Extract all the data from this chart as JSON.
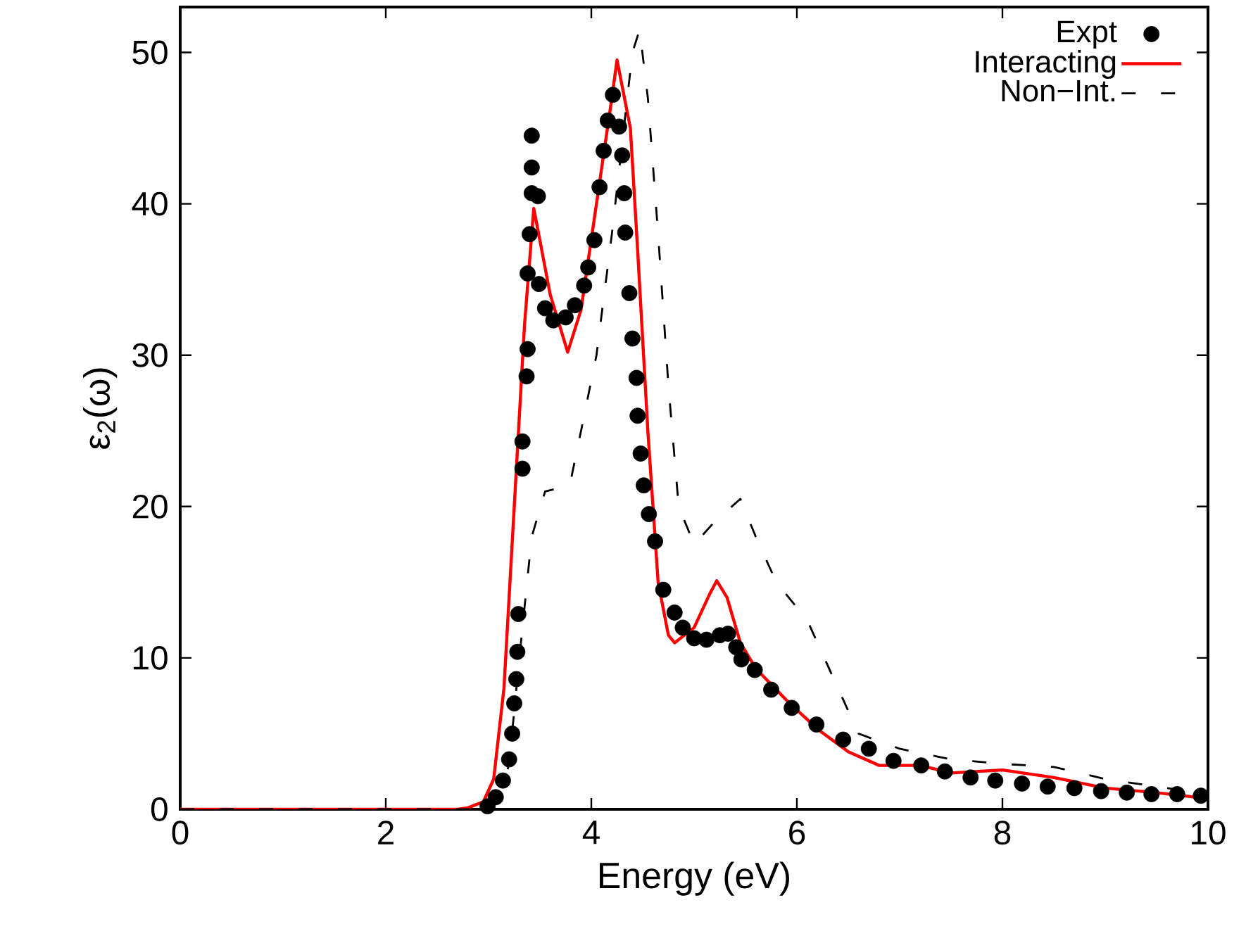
{
  "chart_data": {
    "type": "line",
    "xlabel": "Energy (eV)",
    "ylabel": "ε$_{2}$(ω)",
    "xlim": [
      0,
      10
    ],
    "ylim": [
      0,
      53
    ],
    "xticks": [
      0,
      2,
      4,
      6,
      8,
      10
    ],
    "yticks": [
      0,
      10,
      20,
      30,
      40,
      50
    ],
    "grid": false,
    "legend": "top right",
    "series": [
      {
        "name": "Expt",
        "type": "scatter",
        "marker": "circle",
        "color": "#000000",
        "x": [
          2.99,
          3.07,
          3.14,
          3.2,
          3.23,
          3.25,
          3.27,
          3.28,
          3.29,
          3.33,
          3.33,
          3.37,
          3.38,
          3.38,
          3.4,
          3.42,
          3.42,
          3.42,
          3.48,
          3.49,
          3.55,
          3.63,
          3.75,
          3.84,
          3.93,
          3.97,
          4.03,
          4.08,
          4.12,
          4.16,
          4.21,
          4.27,
          4.3,
          4.32,
          4.33,
          4.37,
          4.4,
          4.44,
          4.45,
          4.48,
          4.51,
          4.56,
          4.62,
          4.7,
          4.81,
          4.89,
          5.0,
          5.12,
          5.25,
          5.33,
          5.41,
          5.46,
          5.59,
          5.75,
          5.95,
          6.19,
          6.45,
          6.7,
          6.94,
          7.21,
          7.44,
          7.69,
          7.93,
          8.19,
          8.44,
          8.7,
          8.96,
          9.21,
          9.45,
          9.7,
          9.93
        ],
        "values": [
          0.2,
          0.8,
          1.9,
          3.3,
          5.0,
          7.0,
          8.6,
          10.4,
          12.9,
          22.5,
          24.3,
          28.6,
          30.4,
          35.4,
          38.0,
          40.7,
          42.4,
          44.5,
          40.5,
          34.7,
          33.1,
          32.3,
          32.5,
          33.3,
          34.6,
          35.8,
          37.6,
          41.1,
          43.5,
          45.5,
          47.2,
          45.1,
          43.2,
          40.7,
          38.1,
          34.1,
          31.1,
          28.5,
          26.0,
          23.5,
          21.4,
          19.5,
          17.7,
          14.5,
          13.0,
          12.0,
          11.3,
          11.2,
          11.5,
          11.6,
          10.7,
          9.9,
          9.2,
          7.9,
          6.7,
          5.6,
          4.6,
          4.0,
          3.2,
          2.9,
          2.5,
          2.1,
          1.9,
          1.7,
          1.5,
          1.4,
          1.2,
          1.1,
          1.0,
          1.0,
          0.9
        ]
      },
      {
        "name": "Interacting",
        "type": "line",
        "marker": "none",
        "line_style": "solid",
        "color": "#ff0000",
        "x": [
          0,
          2.7,
          2.8,
          2.95,
          3.05,
          3.15,
          3.25,
          3.35,
          3.44,
          3.6,
          3.77,
          3.9,
          4.05,
          4.2,
          4.25,
          4.38,
          4.45,
          4.55,
          4.65,
          4.75,
          4.81,
          5.0,
          5.15,
          5.22,
          5.32,
          5.45,
          5.6,
          5.9,
          6.2,
          6.5,
          6.8,
          7.0,
          7.2,
          7.5,
          8.0,
          8.5,
          9.0,
          9.5,
          10
        ],
        "values": [
          0,
          0,
          0.1,
          0.5,
          2,
          8,
          20,
          32,
          39.7,
          34,
          30.2,
          33,
          40,
          47,
          49.5,
          45,
          37,
          25,
          15,
          11.5,
          11.0,
          12,
          14.2,
          15.1,
          14,
          11,
          9.3,
          7.2,
          5.3,
          3.8,
          2.9,
          2.9,
          2.9,
          2.4,
          2.6,
          2.1,
          1.4,
          1.1,
          0.7
        ]
      },
      {
        "name": "Non−Int.",
        "type": "line",
        "marker": "none",
        "line_style": "dashed",
        "color": "#000000",
        "x": [
          0,
          3.0,
          3.1,
          3.2,
          3.3,
          3.42,
          3.55,
          3.79,
          3.9,
          4.05,
          4.2,
          4.3,
          4.4,
          4.47,
          4.55,
          4.65,
          4.75,
          4.85,
          5.0,
          5.2,
          5.45,
          5.6,
          5.8,
          6.1,
          6.4,
          6.6,
          7.0,
          7.5,
          8.0,
          8.5,
          9.0,
          9.5,
          10
        ],
        "values": [
          0,
          0,
          0.5,
          3,
          10,
          18,
          21,
          21.4,
          25,
          30,
          38,
          44,
          50,
          51.5,
          47,
          38,
          28,
          20,
          17.5,
          19,
          20.5,
          18,
          15,
          12.5,
          8,
          5,
          4.0,
          3.3,
          3.0,
          2.8,
          2.0,
          1.5,
          1.0
        ]
      }
    ]
  }
}
